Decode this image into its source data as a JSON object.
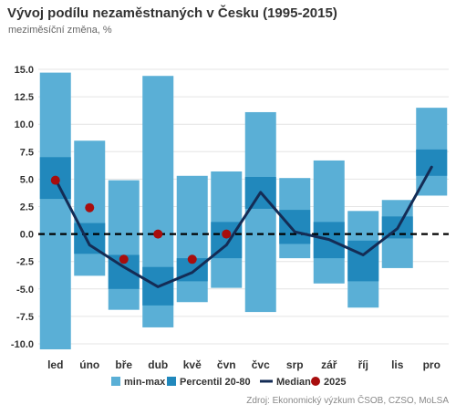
{
  "title": "Vývoj podílu nezaměstnaných v Česku (1995-2015)",
  "subtitle": "meziměsíční změna, %",
  "source": "Zdroj: Ekonomický výzkum ČSOB, CZSO, MoLSA",
  "colors": {
    "minmax": "#5aafd6",
    "percentile": "#2188bc",
    "median": "#142c55",
    "marker2025": "#a80d0d",
    "zero_line": "#000000",
    "grid": "#e4e4e4",
    "text": "#333333"
  },
  "chart_data": {
    "type": "bar",
    "title": "Vývoj podílu nezaměstnaných v Česku (1995-2015)",
    "subtitle": "meziměsíční změna, %",
    "categories": [
      "led",
      "úno",
      "bře",
      "dub",
      "kvě",
      "čvn",
      "čvc",
      "srp",
      "zář",
      "říj",
      "lis",
      "pro"
    ],
    "ylim": [
      -10.5,
      15.5
    ],
    "yticks": [
      15.0,
      12.5,
      10.0,
      7.5,
      5.0,
      2.5,
      0.0,
      -2.5,
      -5.0,
      -7.5,
      -10.0
    ],
    "ytick_labels": [
      "15.0",
      "12.5",
      "10.0",
      "7.5",
      "5.0",
      "2.5",
      "0.0",
      "-2.5",
      "-5.0",
      "-7.5",
      "-10.0"
    ],
    "grid": true,
    "zero_line": "dashed",
    "legend_position": "bottom",
    "series": [
      {
        "name": "min-max",
        "kind": "range",
        "low": [
          -10.5,
          -3.8,
          -6.9,
          -8.5,
          -6.2,
          -4.9,
          -7.1,
          -2.2,
          -4.5,
          -6.7,
          -3.1,
          3.5
        ],
        "high": [
          14.7,
          8.5,
          4.9,
          14.4,
          5.3,
          5.7,
          11.1,
          5.1,
          6.7,
          2.1,
          3.1,
          11.5
        ]
      },
      {
        "name": "Percentil 20-80",
        "kind": "range",
        "low": [
          3.2,
          -1.8,
          -5.0,
          -6.5,
          -4.3,
          -2.2,
          2.3,
          -0.9,
          -2.2,
          -4.3,
          -0.4,
          5.3
        ],
        "high": [
          7.0,
          1.0,
          -1.9,
          -3.0,
          -2.2,
          1.1,
          5.2,
          2.2,
          1.1,
          -0.6,
          1.6,
          7.7
        ]
      },
      {
        "name": "Median",
        "kind": "line",
        "values": [
          5.0,
          -1.0,
          -3.0,
          -4.8,
          -3.5,
          -1.0,
          3.8,
          0.2,
          -0.5,
          -1.9,
          0.5,
          6.1
        ]
      },
      {
        "name": "2025",
        "kind": "scatter",
        "values": [
          4.9,
          2.4,
          -2.3,
          0.0,
          -2.3,
          0.0,
          null,
          null,
          null,
          null,
          null,
          null
        ]
      }
    ]
  }
}
